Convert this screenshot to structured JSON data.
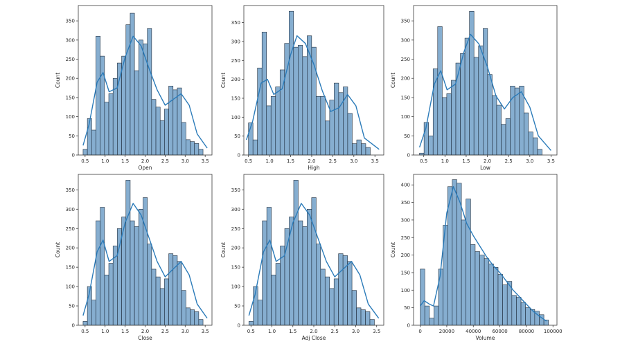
{
  "colors": {
    "bar_fill": "#86aed0",
    "bar_edge": "#1f2d3d",
    "kde": "#2b7bb9",
    "axes": "#3a3a3a"
  },
  "chart_data": [
    {
      "type": "histogram",
      "xlabel": "Open",
      "ylabel": "Count",
      "xlim": [
        0.33,
        3.67
      ],
      "ylim": [
        0,
        390
      ],
      "xticks": [
        0.5,
        1.0,
        1.5,
        2.0,
        2.5,
        3.0,
        3.5
      ],
      "yticks": [
        0,
        50,
        100,
        150,
        200,
        250,
        300,
        350
      ],
      "bin_start": 0.45,
      "bin_width": 0.107,
      "counts": [
        15,
        95,
        65,
        310,
        258,
        138,
        160,
        200,
        240,
        258,
        340,
        370,
        220,
        300,
        290,
        330,
        145,
        125,
        90,
        120,
        180,
        170,
        175,
        85,
        40,
        35,
        30,
        15
      ],
      "kde_x": [
        0.45,
        0.6,
        0.8,
        0.95,
        1.1,
        1.3,
        1.5,
        1.7,
        1.9,
        2.1,
        2.3,
        2.5,
        2.7,
        2.9,
        3.1,
        3.3,
        3.55
      ],
      "kde_y": [
        25,
        80,
        190,
        215,
        165,
        175,
        255,
        310,
        285,
        225,
        170,
        130,
        145,
        160,
        130,
        55,
        18
      ]
    },
    {
      "type": "histogram",
      "xlabel": "High",
      "ylabel": "Count",
      "xlim": [
        0.39,
        3.71
      ],
      "ylim": [
        0,
        395
      ],
      "xticks": [
        0.5,
        1.0,
        1.5,
        2.0,
        2.5,
        3.0,
        3.5
      ],
      "yticks": [
        0,
        50,
        100,
        150,
        200,
        250,
        300,
        350
      ],
      "bin_start": 0.5,
      "bin_width": 0.107,
      "counts": [
        85,
        40,
        230,
        325,
        130,
        155,
        180,
        225,
        295,
        380,
        285,
        290,
        260,
        315,
        285,
        155,
        155,
        90,
        145,
        190,
        165,
        180,
        110,
        30,
        40,
        30,
        20
      ],
      "kde_x": [
        0.45,
        0.6,
        0.8,
        0.95,
        1.1,
        1.3,
        1.5,
        1.65,
        1.85,
        2.05,
        2.25,
        2.45,
        2.65,
        2.85,
        3.05,
        3.25,
        3.6
      ],
      "kde_y": [
        40,
        90,
        190,
        200,
        160,
        175,
        265,
        315,
        295,
        240,
        170,
        115,
        125,
        160,
        130,
        45,
        15
      ]
    },
    {
      "type": "histogram",
      "xlabel": "Low",
      "ylabel": "Count",
      "xlim": [
        0.26,
        3.64
      ],
      "ylim": [
        0,
        390
      ],
      "xticks": [
        0.5,
        1.0,
        1.5,
        2.0,
        2.5,
        3.0,
        3.5
      ],
      "yticks": [
        0,
        50,
        100,
        150,
        200,
        250,
        300,
        350
      ],
      "bin_start": 0.4,
      "bin_width": 0.107,
      "counts": [
        5,
        85,
        50,
        225,
        335,
        150,
        160,
        195,
        240,
        265,
        305,
        375,
        255,
        285,
        330,
        210,
        155,
        130,
        80,
        95,
        180,
        175,
        180,
        110,
        60,
        45,
        15
      ],
      "kde_x": [
        0.4,
        0.55,
        0.75,
        0.9,
        1.05,
        1.25,
        1.45,
        1.6,
        1.8,
        2.0,
        2.2,
        2.4,
        2.6,
        2.8,
        3.0,
        3.2,
        3.5
      ],
      "kde_y": [
        20,
        70,
        185,
        220,
        170,
        185,
        270,
        315,
        290,
        230,
        155,
        120,
        150,
        165,
        125,
        50,
        12
      ]
    },
    {
      "type": "histogram",
      "xlabel": "Close",
      "ylabel": "Count",
      "xlim": [
        0.33,
        3.67
      ],
      "ylim": [
        0,
        390
      ],
      "xticks": [
        0.5,
        1.0,
        1.5,
        2.0,
        2.5,
        3.0,
        3.5
      ],
      "yticks": [
        0,
        50,
        100,
        150,
        200,
        250,
        300,
        350
      ],
      "bin_start": 0.45,
      "bin_width": 0.107,
      "counts": [
        10,
        100,
        65,
        270,
        305,
        130,
        160,
        205,
        250,
        280,
        375,
        270,
        255,
        300,
        330,
        210,
        145,
        125,
        95,
        120,
        185,
        180,
        165,
        90,
        45,
        40,
        35,
        15
      ],
      "kde_x": [
        0.45,
        0.6,
        0.8,
        0.95,
        1.1,
        1.3,
        1.5,
        1.7,
        1.9,
        2.1,
        2.3,
        2.5,
        2.7,
        2.9,
        3.1,
        3.3,
        3.55
      ],
      "kde_y": [
        25,
        80,
        190,
        220,
        165,
        180,
        265,
        315,
        285,
        225,
        165,
        125,
        145,
        165,
        130,
        55,
        18
      ]
    },
    {
      "type": "histogram",
      "xlabel": "Adj Close",
      "ylabel": "Count",
      "xlim": [
        0.33,
        3.67
      ],
      "ylim": [
        0,
        390
      ],
      "xticks": [
        0.5,
        1.0,
        1.5,
        2.0,
        2.5,
        3.0,
        3.5
      ],
      "yticks": [
        0,
        50,
        100,
        150,
        200,
        250,
        300,
        350
      ],
      "bin_start": 0.45,
      "bin_width": 0.107,
      "counts": [
        10,
        100,
        65,
        270,
        305,
        130,
        160,
        205,
        250,
        280,
        375,
        270,
        255,
        300,
        330,
        210,
        145,
        125,
        95,
        120,
        185,
        180,
        165,
        90,
        45,
        40,
        35,
        15
      ],
      "kde_x": [
        0.45,
        0.6,
        0.8,
        0.95,
        1.1,
        1.3,
        1.5,
        1.7,
        1.9,
        2.1,
        2.3,
        2.5,
        2.7,
        2.9,
        3.1,
        3.3,
        3.55
      ],
      "kde_y": [
        25,
        80,
        190,
        220,
        165,
        180,
        265,
        315,
        285,
        225,
        165,
        125,
        145,
        165,
        130,
        55,
        18
      ]
    },
    {
      "type": "histogram",
      "xlabel": "Volume",
      "ylabel": "Count",
      "xlim": [
        -5000,
        103000
      ],
      "ylim": [
        0,
        430
      ],
      "xticks": [
        0,
        20000,
        40000,
        60000,
        80000,
        100000
      ],
      "yticks": [
        0,
        50,
        100,
        150,
        200,
        250,
        300,
        350,
        400
      ],
      "bin_start": 0,
      "bin_width": 3450,
      "counts": [
        160,
        55,
        20,
        55,
        160,
        285,
        395,
        415,
        405,
        300,
        360,
        230,
        210,
        200,
        190,
        175,
        165,
        145,
        115,
        125,
        85,
        80,
        65,
        50,
        45,
        40,
        30,
        15
      ],
      "kde_x": [
        0,
        3000,
        7000,
        10000,
        15000,
        20000,
        25000,
        30000,
        35000,
        40000,
        45000,
        50000,
        55000,
        60000,
        65000,
        70000,
        75000,
        80000,
        85000,
        90000,
        95000
      ],
      "kde_y": [
        55,
        70,
        60,
        55,
        140,
        320,
        395,
        350,
        290,
        255,
        225,
        195,
        170,
        150,
        125,
        100,
        80,
        60,
        40,
        25,
        12
      ]
    }
  ]
}
